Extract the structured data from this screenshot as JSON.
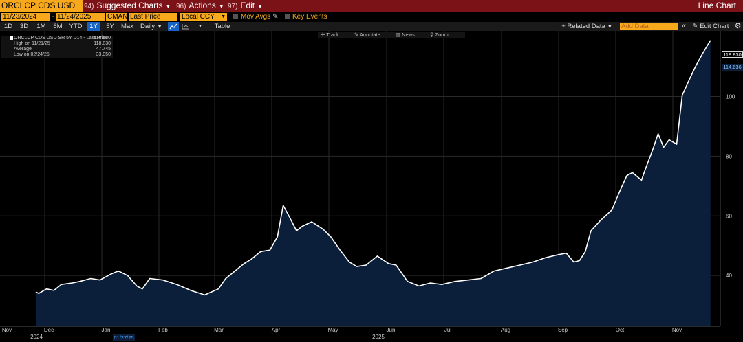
{
  "header": {
    "ticker": "ORCLCP CDS USD SR",
    "menus": [
      {
        "num": "94)",
        "label": "Suggested Charts"
      },
      {
        "num": "96)",
        "label": "Actions"
      },
      {
        "num": "97)",
        "label": "Edit"
      }
    ],
    "chart_type": "Line Chart"
  },
  "params": {
    "start_date": "11/23/2024",
    "end_date": "11/24/2025",
    "source": "CMAN",
    "field": "Last Price",
    "currency": "Local CCY",
    "mov_avgs": "Mov Avgs",
    "key_events": "Key Events"
  },
  "toolbar": {
    "ranges": [
      "1D",
      "3D",
      "1M",
      "6M",
      "YTD",
      "1Y",
      "5Y",
      "Max"
    ],
    "selected_range": "1Y",
    "frequency": "Daily",
    "table": "Table",
    "related_data": "Related Data",
    "add_data_placeholder": "Add Data",
    "edit_chart": "Edit Chart"
  },
  "tools": [
    "Track",
    "Annotate",
    "News",
    "Zoom"
  ],
  "legend": {
    "series_name": "ORCLCP CDS USD SR 5Y D14 - Last Price",
    "last_value": "118.830",
    "high_label": "High on 11/21/25",
    "high_value": "118.830",
    "avg_label": "Average",
    "avg_value": "47.745",
    "low_label": "Low on 02/24/25",
    "low_value": "33.050"
  },
  "price_tags": {
    "last": "118.830",
    "second": "114.636"
  },
  "axis_extra": {
    "start_marker": "01/27/25"
  },
  "colors": {
    "accent": "#f7a81b",
    "header_bg": "#7a1218",
    "area_fill": "#0b1e3a",
    "line": "#ffffff",
    "selected": "#1763c6"
  },
  "chart_data": {
    "type": "area",
    "title": "ORCLCP CDS USD SR 5Y D14 - Last Price",
    "x_ticks": [
      "Nov",
      "Dec",
      "Jan",
      "Feb",
      "Mar",
      "Apr",
      "May",
      "Jun",
      "Jul",
      "Aug",
      "Sep",
      "Oct",
      "Nov"
    ],
    "x_year_labels": [
      {
        "month": "Dec",
        "year": "2024"
      },
      {
        "month": "Jun",
        "year": "2025"
      }
    ],
    "y_ticks": [
      40,
      60,
      80,
      100
    ],
    "ylim": [
      23,
      122
    ],
    "grid": true,
    "legend_position": "top-left",
    "series": [
      {
        "name": "ORCLCP CDS USD SR 5Y D14 - Last Price",
        "points": [
          [
            "2024-11-25",
            34.5
          ],
          [
            "2024-11-27",
            34.0
          ],
          [
            "2024-12-02",
            35.5
          ],
          [
            "2024-12-06",
            35.0
          ],
          [
            "2024-12-10",
            37.0
          ],
          [
            "2024-12-16",
            37.5
          ],
          [
            "2024-12-20",
            38.0
          ],
          [
            "2024-12-26",
            39.0
          ],
          [
            "2024-12-31",
            38.5
          ],
          [
            "2025-01-06",
            40.5
          ],
          [
            "2025-01-10",
            41.5
          ],
          [
            "2025-01-15",
            40.0
          ],
          [
            "2025-01-20",
            36.5
          ],
          [
            "2025-01-23",
            35.5
          ],
          [
            "2025-01-27",
            39.0
          ],
          [
            "2025-02-03",
            38.5
          ],
          [
            "2025-02-10",
            37.0
          ],
          [
            "2025-02-17",
            35.0
          ],
          [
            "2025-02-24",
            33.5
          ],
          [
            "2025-03-03",
            35.5
          ],
          [
            "2025-03-07",
            39.0
          ],
          [
            "2025-03-12",
            41.5
          ],
          [
            "2025-03-17",
            44.0
          ],
          [
            "2025-03-21",
            45.5
          ],
          [
            "2025-03-26",
            48.0
          ],
          [
            "2025-03-31",
            48.5
          ],
          [
            "2025-04-04",
            53.0
          ],
          [
            "2025-04-07",
            63.5
          ],
          [
            "2025-04-10",
            60.0
          ],
          [
            "2025-04-14",
            55.0
          ],
          [
            "2025-04-17",
            56.5
          ],
          [
            "2025-04-22",
            58.0
          ],
          [
            "2025-04-28",
            55.5
          ],
          [
            "2025-05-02",
            53.0
          ],
          [
            "2025-05-07",
            48.5
          ],
          [
            "2025-05-12",
            44.5
          ],
          [
            "2025-05-16",
            43.0
          ],
          [
            "2025-05-21",
            43.5
          ],
          [
            "2025-05-27",
            46.5
          ],
          [
            "2025-06-02",
            44.0
          ],
          [
            "2025-06-06",
            43.5
          ],
          [
            "2025-06-12",
            38.0
          ],
          [
            "2025-06-18",
            36.5
          ],
          [
            "2025-06-24",
            37.5
          ],
          [
            "2025-06-30",
            37.0
          ],
          [
            "2025-07-07",
            38.0
          ],
          [
            "2025-07-14",
            38.5
          ],
          [
            "2025-07-21",
            39.0
          ],
          [
            "2025-07-28",
            41.5
          ],
          [
            "2025-08-04",
            42.5
          ],
          [
            "2025-08-11",
            43.5
          ],
          [
            "2025-08-18",
            44.5
          ],
          [
            "2025-08-25",
            46.0
          ],
          [
            "2025-09-01",
            47.0
          ],
          [
            "2025-09-05",
            47.5
          ],
          [
            "2025-09-09",
            44.5
          ],
          [
            "2025-09-12",
            45.0
          ],
          [
            "2025-09-15",
            48.0
          ],
          [
            "2025-09-18",
            55.0
          ],
          [
            "2025-09-23",
            58.5
          ],
          [
            "2025-09-29",
            62.0
          ],
          [
            "2025-10-03",
            68.0
          ],
          [
            "2025-10-07",
            73.5
          ],
          [
            "2025-10-10",
            74.5
          ],
          [
            "2025-10-15",
            72.0
          ],
          [
            "2025-10-17",
            75.5
          ],
          [
            "2025-10-21",
            82.0
          ],
          [
            "2025-10-24",
            87.5
          ],
          [
            "2025-10-27",
            83.0
          ],
          [
            "2025-10-30",
            85.5
          ],
          [
            "2025-11-03",
            84.0
          ],
          [
            "2025-11-06",
            100.5
          ],
          [
            "2025-11-10",
            106.0
          ],
          [
            "2025-11-13",
            110.0
          ],
          [
            "2025-11-17",
            114.6
          ],
          [
            "2025-11-21",
            118.83
          ]
        ]
      }
    ]
  }
}
